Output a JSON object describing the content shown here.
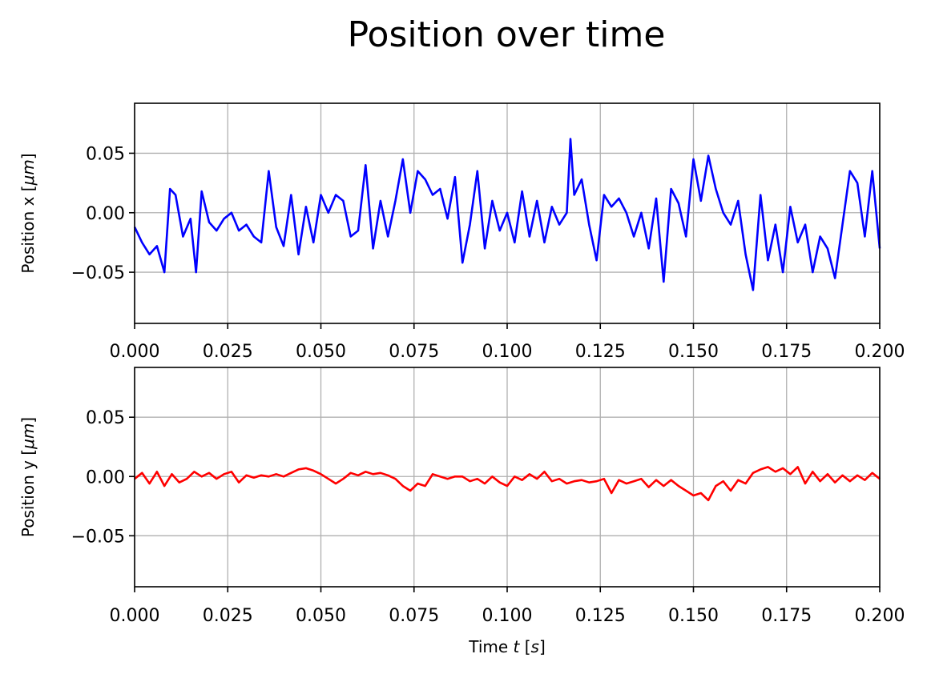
{
  "title": "Position over time",
  "chart_data": [
    {
      "type": "line",
      "title": "",
      "xlabel": "",
      "ylabel": "Position x [μm]",
      "xlim": [
        0.0,
        0.2
      ],
      "ylim": [
        -0.093,
        0.092
      ],
      "grid": true,
      "xticks": [
        "0.000",
        "0.025",
        "0.050",
        "0.075",
        "0.100",
        "0.125",
        "0.150",
        "0.175",
        "0.200"
      ],
      "yticks": [
        "0.05",
        "0.00",
        "−0.05"
      ],
      "ytick_values": [
        0.05,
        0.0,
        -0.05
      ],
      "series": [
        {
          "color": "#0000ff",
          "x": [
            0.0,
            0.002,
            0.004,
            0.006,
            0.008,
            0.0095,
            0.011,
            0.013,
            0.015,
            0.0165,
            0.018,
            0.02,
            0.022,
            0.024,
            0.026,
            0.028,
            0.03,
            0.032,
            0.034,
            0.036,
            0.038,
            0.04,
            0.042,
            0.044,
            0.046,
            0.048,
            0.05,
            0.052,
            0.054,
            0.056,
            0.058,
            0.06,
            0.062,
            0.064,
            0.066,
            0.068,
            0.07,
            0.072,
            0.074,
            0.076,
            0.078,
            0.08,
            0.082,
            0.084,
            0.086,
            0.088,
            0.09,
            0.092,
            0.094,
            0.096,
            0.098,
            0.1,
            0.102,
            0.104,
            0.106,
            0.108,
            0.11,
            0.112,
            0.114,
            0.116,
            0.117,
            0.118,
            0.12,
            0.122,
            0.124,
            0.126,
            0.128,
            0.13,
            0.132,
            0.134,
            0.136,
            0.138,
            0.14,
            0.142,
            0.144,
            0.146,
            0.148,
            0.15,
            0.152,
            0.154,
            0.156,
            0.158,
            0.16,
            0.162,
            0.164,
            0.166,
            0.168,
            0.17,
            0.172,
            0.174,
            0.176,
            0.178,
            0.18,
            0.182,
            0.184,
            0.186,
            0.188,
            0.19,
            0.192,
            0.194,
            0.196,
            0.198,
            0.2
          ],
          "y": [
            -0.012,
            -0.025,
            -0.035,
            -0.028,
            -0.05,
            0.02,
            0.015,
            -0.02,
            -0.005,
            -0.05,
            0.018,
            -0.008,
            -0.015,
            -0.005,
            0.0,
            -0.015,
            -0.01,
            -0.02,
            -0.025,
            0.035,
            -0.012,
            -0.028,
            0.015,
            -0.035,
            0.005,
            -0.025,
            0.015,
            0.0,
            0.015,
            0.01,
            -0.02,
            -0.015,
            0.04,
            -0.03,
            0.01,
            -0.02,
            0.01,
            0.045,
            0.0,
            0.035,
            0.028,
            0.015,
            0.02,
            -0.005,
            0.03,
            -0.042,
            -0.01,
            0.035,
            -0.03,
            0.01,
            -0.015,
            0.0,
            -0.025,
            0.018,
            -0.02,
            0.01,
            -0.025,
            0.005,
            -0.01,
            0.0,
            0.062,
            0.015,
            0.028,
            -0.01,
            -0.04,
            0.015,
            0.005,
            0.012,
            0.0,
            -0.02,
            0.0,
            -0.03,
            0.012,
            -0.058,
            0.02,
            0.008,
            -0.02,
            0.045,
            0.01,
            0.048,
            0.02,
            0.0,
            -0.01,
            0.01,
            -0.035,
            -0.065,
            0.015,
            -0.04,
            -0.01,
            -0.05,
            0.005,
            -0.025,
            -0.01,
            -0.05,
            -0.02,
            -0.03,
            -0.055,
            -0.01,
            0.035,
            0.025,
            -0.02,
            0.035,
            -0.03
          ]
        }
      ]
    },
    {
      "type": "line",
      "title": "",
      "xlabel": "Time t [s]",
      "ylabel": "Position y [μm]",
      "xlim": [
        0.0,
        0.2
      ],
      "ylim": [
        -0.093,
        0.092
      ],
      "grid": true,
      "xticks": [
        "0.000",
        "0.025",
        "0.050",
        "0.075",
        "0.100",
        "0.125",
        "0.150",
        "0.175",
        "0.200"
      ],
      "yticks": [
        "0.05",
        "0.00",
        "−0.05"
      ],
      "ytick_values": [
        0.05,
        0.0,
        -0.05
      ],
      "series": [
        {
          "color": "#ff0000",
          "x": [
            0.0,
            0.002,
            0.004,
            0.006,
            0.008,
            0.01,
            0.012,
            0.014,
            0.016,
            0.018,
            0.02,
            0.022,
            0.024,
            0.026,
            0.028,
            0.03,
            0.032,
            0.034,
            0.036,
            0.038,
            0.04,
            0.042,
            0.044,
            0.046,
            0.048,
            0.05,
            0.052,
            0.054,
            0.056,
            0.058,
            0.06,
            0.062,
            0.064,
            0.066,
            0.068,
            0.07,
            0.072,
            0.074,
            0.076,
            0.078,
            0.08,
            0.082,
            0.084,
            0.086,
            0.088,
            0.09,
            0.092,
            0.094,
            0.096,
            0.098,
            0.1,
            0.102,
            0.104,
            0.106,
            0.108,
            0.11,
            0.112,
            0.114,
            0.116,
            0.118,
            0.12,
            0.122,
            0.124,
            0.126,
            0.128,
            0.13,
            0.132,
            0.134,
            0.136,
            0.138,
            0.14,
            0.142,
            0.144,
            0.146,
            0.148,
            0.15,
            0.152,
            0.154,
            0.156,
            0.158,
            0.16,
            0.162,
            0.164,
            0.166,
            0.168,
            0.17,
            0.172,
            0.174,
            0.176,
            0.178,
            0.18,
            0.182,
            0.184,
            0.186,
            0.188,
            0.19,
            0.192,
            0.194,
            0.196,
            0.198,
            0.2
          ],
          "y": [
            -0.002,
            0.003,
            -0.006,
            0.004,
            -0.008,
            0.002,
            -0.005,
            -0.002,
            0.004,
            0.0,
            0.003,
            -0.002,
            0.002,
            0.004,
            -0.005,
            0.001,
            -0.001,
            0.001,
            0.0,
            0.002,
            0.0,
            0.003,
            0.006,
            0.007,
            0.005,
            0.002,
            -0.002,
            -0.006,
            -0.002,
            0.003,
            0.001,
            0.004,
            0.002,
            0.003,
            0.001,
            -0.002,
            -0.008,
            -0.012,
            -0.006,
            -0.008,
            0.002,
            0.0,
            -0.002,
            0.0,
            0.0,
            -0.004,
            -0.002,
            -0.006,
            0.0,
            -0.005,
            -0.008,
            0.0,
            -0.003,
            0.002,
            -0.002,
            0.004,
            -0.004,
            -0.002,
            -0.006,
            -0.004,
            -0.003,
            -0.005,
            -0.004,
            -0.002,
            -0.014,
            -0.003,
            -0.006,
            -0.004,
            -0.002,
            -0.009,
            -0.003,
            -0.008,
            -0.003,
            -0.008,
            -0.012,
            -0.016,
            -0.014,
            -0.02,
            -0.008,
            -0.004,
            -0.012,
            -0.003,
            -0.006,
            0.003,
            0.006,
            0.008,
            0.004,
            0.007,
            0.002,
            0.008,
            -0.006,
            0.004,
            -0.004,
            0.002,
            -0.005,
            0.001,
            -0.004,
            0.001,
            -0.003,
            0.003,
            -0.002
          ]
        }
      ]
    }
  ]
}
